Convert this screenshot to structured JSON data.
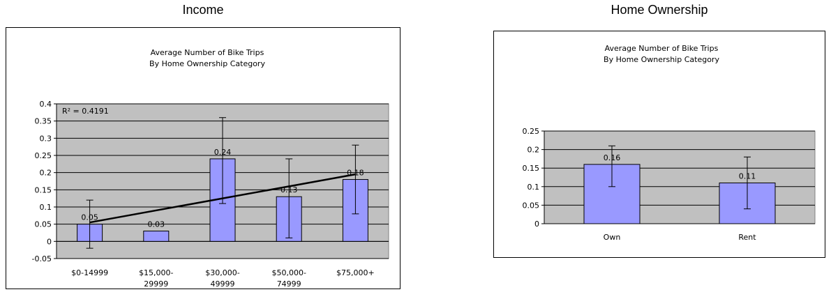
{
  "panels": [
    {
      "heading": "Income"
    },
    {
      "heading": "Home Ownership"
    }
  ],
  "chart_data": [
    {
      "type": "bar",
      "title": "Average Number of Bike Trips",
      "subtitle": "By Home Ownership Category",
      "categories": [
        [
          "$0-14999"
        ],
        [
          "$15,000-",
          "29999"
        ],
        [
          "$30,000-",
          "49999"
        ],
        [
          "$50,000-",
          "74999"
        ],
        [
          "$75,000+"
        ]
      ],
      "values": [
        0.05,
        0.03,
        0.24,
        0.13,
        0.18
      ],
      "data_labels": [
        "0.05",
        "0.03",
        "0.24",
        "0.13",
        "0.18"
      ],
      "error_low": [
        -0.02,
        null,
        0.11,
        0.01,
        0.08
      ],
      "error_high": [
        0.12,
        null,
        0.36,
        0.24,
        0.28
      ],
      "trendline": {
        "type": "linear",
        "start": 0.055,
        "end": 0.195,
        "r2_label": "R² = 0.4191"
      },
      "ylim": [
        -0.05,
        0.4
      ],
      "yticks": [
        -0.05,
        0,
        0.05,
        0.1,
        0.15,
        0.2,
        0.25,
        0.3,
        0.35,
        0.4
      ],
      "ytick_labels": [
        "-0.05",
        "0",
        "0.05",
        "0.1",
        "0.15",
        "0.2",
        "0.25",
        "0.3",
        "0.35",
        "0.4"
      ],
      "grid": true,
      "plot_background": "#c0c0c0",
      "bar_color": "#9999ff"
    },
    {
      "type": "bar",
      "title": "Average Number of Bike Trips",
      "subtitle": "By Home Ownership Category",
      "categories": [
        [
          "Own"
        ],
        [
          "Rent"
        ]
      ],
      "values": [
        0.16,
        0.11
      ],
      "data_labels": [
        "0.16",
        "0.11"
      ],
      "error_low": [
        0.1,
        0.04
      ],
      "error_high": [
        0.21,
        0.18
      ],
      "ylim": [
        0,
        0.25
      ],
      "yticks": [
        0,
        0.05,
        0.1,
        0.15,
        0.2,
        0.25
      ],
      "ytick_labels": [
        "0",
        "0.05",
        "0.1",
        "0.15",
        "0.2",
        "0.25"
      ],
      "grid": true,
      "plot_background": "#c0c0c0",
      "bar_color": "#9999ff"
    }
  ]
}
